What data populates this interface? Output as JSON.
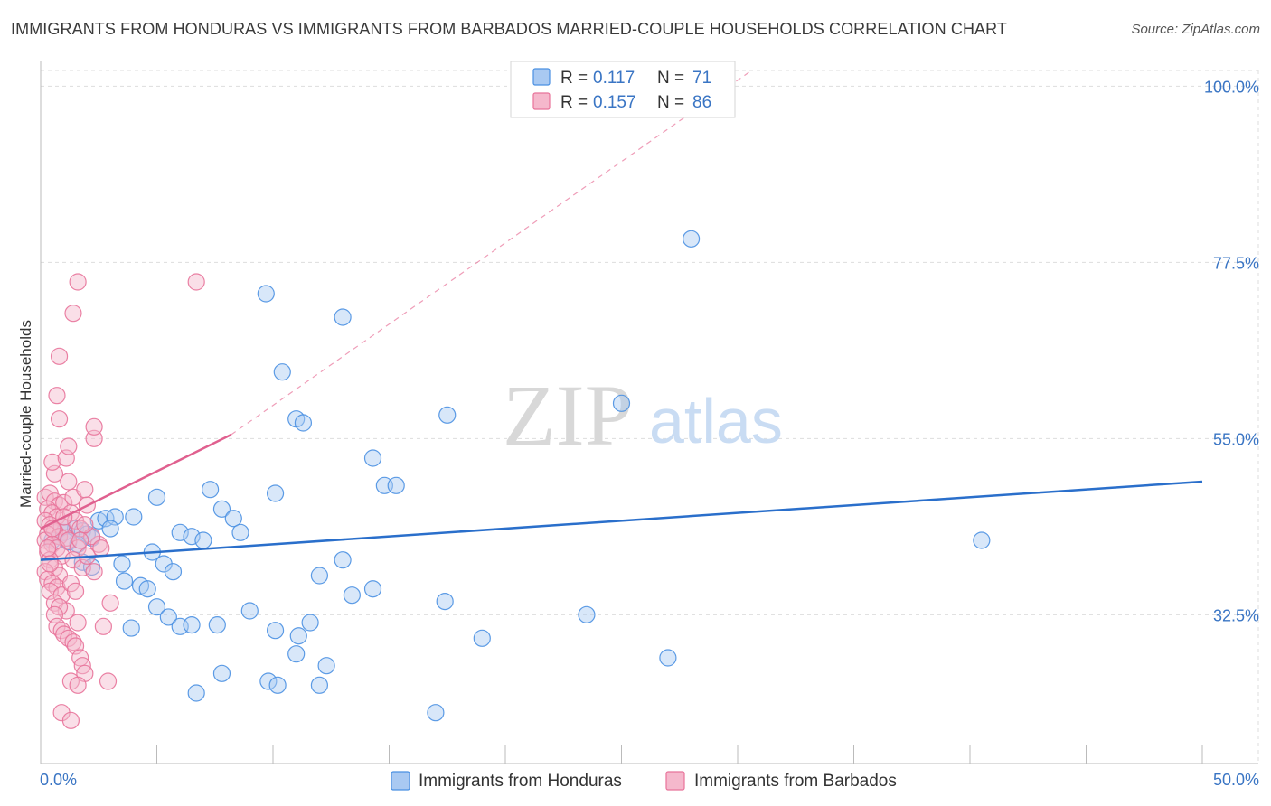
{
  "header": {
    "title": "IMMIGRANTS FROM HONDURAS VS IMMIGRANTS FROM BARBADOS MARRIED-COUPLE HOUSEHOLDS CORRELATION CHART",
    "source": "Source: ZipAtlas.com"
  },
  "watermark": {
    "zip": "ZIP",
    "atlas": "atlas"
  },
  "colors": {
    "honduras": "#4a90e2",
    "honduras_fill": "#a9c9f2",
    "honduras_line": "#2a6fcb",
    "barbados": "#e8739a",
    "barbados_fill": "#f5b8cc",
    "barbados_line": "#e0608f",
    "axis_text": "#3a75c4",
    "grid": "#dddddd"
  },
  "chart_data": {
    "type": "scatter",
    "title": "IMMIGRANTS FROM HONDURAS VS IMMIGRANTS FROM BARBADOS MARRIED-COUPLE HOUSEHOLDS CORRELATION CHART",
    "xlabel": "",
    "ylabel": "Married-couple Households",
    "xlim": [
      0,
      50
    ],
    "ylim": [
      13.5,
      102
    ],
    "x_tick_labels": [
      "0.0%",
      "50.0%"
    ],
    "y_ticks": [
      32.5,
      55.0,
      77.5,
      100.0
    ],
    "y_tick_labels": [
      "32.5%",
      "55.0%",
      "77.5%",
      "100.0%"
    ],
    "grid": true,
    "legend_position": "top-center",
    "legend": [
      {
        "r_label": "R =",
        "r_value": "0.117",
        "n_label": "N =",
        "n_value": "71"
      },
      {
        "r_label": "R =",
        "r_value": "0.157",
        "n_label": "N =",
        "n_value": "86"
      }
    ],
    "bottom_legend": [
      "Immigrants from Honduras",
      "Immigrants from Barbados"
    ],
    "series": [
      {
        "name": "Immigrants from Honduras",
        "trend": {
          "x": [
            0,
            50
          ],
          "y": [
            39.5,
            49.5
          ]
        },
        "points": [
          [
            0.8,
            42.5
          ],
          [
            1.0,
            43.0
          ],
          [
            1.2,
            41.8
          ],
          [
            1.5,
            43.5
          ],
          [
            1.8,
            43.2
          ],
          [
            2.0,
            42.8
          ],
          [
            0.5,
            42.0
          ],
          [
            2.2,
            42.3
          ],
          [
            1.6,
            41.5
          ],
          [
            0.9,
            43.8
          ],
          [
            2.5,
            44.5
          ],
          [
            2.8,
            44.8
          ],
          [
            3.2,
            45.0
          ],
          [
            3.0,
            43.5
          ],
          [
            1.8,
            39.2
          ],
          [
            2.2,
            38.6
          ],
          [
            3.5,
            39.0
          ],
          [
            4.0,
            45.0
          ],
          [
            5.0,
            47.5
          ],
          [
            4.8,
            40.5
          ],
          [
            5.3,
            39.0
          ],
          [
            5.7,
            38.0
          ],
          [
            3.6,
            36.8
          ],
          [
            4.3,
            36.2
          ],
          [
            4.6,
            35.8
          ],
          [
            5.0,
            33.5
          ],
          [
            5.5,
            32.2
          ],
          [
            6.0,
            31.0
          ],
          [
            6.5,
            31.2
          ],
          [
            3.9,
            30.8
          ],
          [
            6.0,
            43.0
          ],
          [
            6.5,
            42.5
          ],
          [
            7.0,
            42.0
          ],
          [
            7.3,
            48.5
          ],
          [
            7.8,
            46.0
          ],
          [
            8.3,
            44.8
          ],
          [
            8.6,
            43.0
          ],
          [
            7.6,
            31.2
          ],
          [
            9.0,
            33.0
          ],
          [
            9.8,
            24.0
          ],
          [
            10.2,
            23.5
          ],
          [
            7.8,
            25.0
          ],
          [
            6.7,
            22.5
          ],
          [
            9.7,
            73.5
          ],
          [
            10.4,
            63.5
          ],
          [
            10.1,
            30.5
          ],
          [
            11.0,
            57.5
          ],
          [
            11.3,
            57.0
          ],
          [
            10.1,
            48.0
          ],
          [
            11.1,
            29.8
          ],
          [
            11.0,
            27.5
          ],
          [
            11.6,
            31.5
          ],
          [
            12.0,
            23.5
          ],
          [
            12.3,
            26.0
          ],
          [
            12.0,
            37.5
          ],
          [
            13.0,
            70.5
          ],
          [
            13.0,
            39.5
          ],
          [
            13.4,
            35.0
          ],
          [
            14.3,
            35.8
          ],
          [
            14.3,
            52.5
          ],
          [
            14.8,
            49.0
          ],
          [
            15.3,
            49.0
          ],
          [
            17.0,
            20.0
          ],
          [
            17.5,
            58.0
          ],
          [
            17.4,
            34.2
          ],
          [
            19.0,
            29.5
          ],
          [
            23.5,
            32.5
          ],
          [
            25.0,
            59.5
          ],
          [
            27.0,
            27.0
          ],
          [
            28.0,
            80.5
          ],
          [
            40.5,
            42.0
          ]
        ]
      },
      {
        "name": "Immigrants from Barbados",
        "trend": {
          "x": [
            0,
            8.2
          ],
          "y": [
            43.5,
            55.5
          ]
        },
        "trend_extended": {
          "x": [
            8.2,
            30.6
          ],
          "y": [
            55.5,
            102
          ]
        },
        "points": [
          [
            0.2,
            47.5
          ],
          [
            0.4,
            48.0
          ],
          [
            0.6,
            47.0
          ],
          [
            0.8,
            46.5
          ],
          [
            0.3,
            46.0
          ],
          [
            0.5,
            45.5
          ],
          [
            1.0,
            46.8
          ],
          [
            0.7,
            45.0
          ],
          [
            0.2,
            44.5
          ],
          [
            0.4,
            44.0
          ],
          [
            0.9,
            43.8
          ],
          [
            0.6,
            43.2
          ],
          [
            0.3,
            42.8
          ],
          [
            0.8,
            42.5
          ],
          [
            0.2,
            42.0
          ],
          [
            1.1,
            42.3
          ],
          [
            0.5,
            41.5
          ],
          [
            0.7,
            41.0
          ],
          [
            0.3,
            40.5
          ],
          [
            0.9,
            40.0
          ],
          [
            0.4,
            39.5
          ],
          [
            0.6,
            38.5
          ],
          [
            0.2,
            38.0
          ],
          [
            0.8,
            37.5
          ],
          [
            0.3,
            37.0
          ],
          [
            0.5,
            36.5
          ],
          [
            0.7,
            36.0
          ],
          [
            0.4,
            35.5
          ],
          [
            0.9,
            35.0
          ],
          [
            0.6,
            34.0
          ],
          [
            1.3,
            45.5
          ],
          [
            1.5,
            44.5
          ],
          [
            1.7,
            43.5
          ],
          [
            1.2,
            42.0
          ],
          [
            1.6,
            41.0
          ],
          [
            1.4,
            39.5
          ],
          [
            1.8,
            38.5
          ],
          [
            1.3,
            36.5
          ],
          [
            1.5,
            35.5
          ],
          [
            1.1,
            33.0
          ],
          [
            0.8,
            33.5
          ],
          [
            0.6,
            32.5
          ],
          [
            0.7,
            31.0
          ],
          [
            0.9,
            30.5
          ],
          [
            1.0,
            30.0
          ],
          [
            1.2,
            29.5
          ],
          [
            1.4,
            29.0
          ],
          [
            1.6,
            31.5
          ],
          [
            1.5,
            28.5
          ],
          [
            1.7,
            27.0
          ],
          [
            1.8,
            26.0
          ],
          [
            1.9,
            25.0
          ],
          [
            1.3,
            24.0
          ],
          [
            1.6,
            23.5
          ],
          [
            0.9,
            20.0
          ],
          [
            1.3,
            19.0
          ],
          [
            2.7,
            31.0
          ],
          [
            2.9,
            24.0
          ],
          [
            3.0,
            34.0
          ],
          [
            2.3,
            38.0
          ],
          [
            2.5,
            41.5
          ],
          [
            2.2,
            42.5
          ],
          [
            2.0,
            46.5
          ],
          [
            2.6,
            41.0
          ],
          [
            1.4,
            47.5
          ],
          [
            1.9,
            48.5
          ],
          [
            1.2,
            49.5
          ],
          [
            0.6,
            50.5
          ],
          [
            0.5,
            52.0
          ],
          [
            1.1,
            52.5
          ],
          [
            1.2,
            54.0
          ],
          [
            2.3,
            55.0
          ],
          [
            2.3,
            56.5
          ],
          [
            0.8,
            57.5
          ],
          [
            0.7,
            60.5
          ],
          [
            0.8,
            65.5
          ],
          [
            1.4,
            71.0
          ],
          [
            1.6,
            75.0
          ],
          [
            6.7,
            75.0
          ],
          [
            1.9,
            44.0
          ],
          [
            1.7,
            42.0
          ],
          [
            0.5,
            43.5
          ],
          [
            0.3,
            41.0
          ],
          [
            1.0,
            45.0
          ],
          [
            2.0,
            40.0
          ],
          [
            0.4,
            39.0
          ]
        ]
      }
    ]
  }
}
